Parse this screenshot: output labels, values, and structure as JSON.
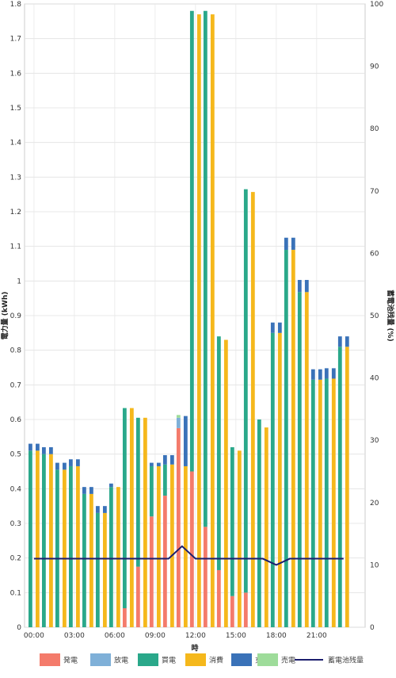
{
  "chart_data": {
    "type": "bar",
    "stacked": true,
    "title": "",
    "xlabel": "時",
    "ylabel": "電力量 (kWh)",
    "y2label": "蓄電池残量 (%)",
    "ylim": [
      0,
      1.8
    ],
    "y2lim": [
      0,
      100
    ],
    "yticks": [
      "0",
      "0.1",
      "0.2",
      "0.3",
      "0.4",
      "0.5",
      "0.6",
      "0.7",
      "0.8",
      "0.9",
      "1",
      "1.1",
      "1.2",
      "1.3",
      "1.4",
      "1.5",
      "1.6",
      "1.7",
      "1.8"
    ],
    "y2ticks": [
      "0",
      "10",
      "20",
      "30",
      "40",
      "50",
      "60",
      "70",
      "80",
      "90",
      "100"
    ],
    "xticks": [
      "00:00",
      "03:00",
      "06:00",
      "09:00",
      "12:00",
      "15:00",
      "18:00",
      "21:00"
    ],
    "grid": true,
    "legend_position": "bottom",
    "bar_pairs": [
      {
        "left": {
          "発電": 0,
          "放電": 0,
          "買電": 0.51,
          "充電": 0.02,
          "売電": 0
        },
        "right": {
          "消費": 0.51,
          "充電": 0.02
        }
      },
      {
        "left": {
          "発電": 0,
          "放電": 0,
          "買電": 0.5,
          "充電": 0.02,
          "売電": 0
        },
        "right": {
          "消費": 0.5,
          "充電": 0.02
        }
      },
      {
        "left": {
          "発電": 0,
          "放電": 0,
          "買電": 0.455,
          "充電": 0.02,
          "売電": 0
        },
        "right": {
          "消費": 0.455,
          "充電": 0.02
        }
      },
      {
        "left": {
          "発電": 0,
          "放電": 0,
          "買電": 0.465,
          "充電": 0.02,
          "売電": 0
        },
        "right": {
          "消費": 0.465,
          "充電": 0.02
        }
      },
      {
        "left": {
          "発電": 0,
          "放電": 0,
          "買電": 0.385,
          "充電": 0.02,
          "売電": 0
        },
        "right": {
          "消費": 0.385,
          "充電": 0.02
        }
      },
      {
        "left": {
          "発電": 0,
          "放電": 0,
          "買電": 0.33,
          "充電": 0.02,
          "売電": 0
        },
        "right": {
          "消費": 0.33,
          "充電": 0.02
        }
      },
      {
        "left": {
          "発電": 0,
          "放電": 0,
          "買電": 0.405,
          "充電": 0.01,
          "売電": 0
        },
        "right": {
          "消費": 0.405,
          "充電": 0
        }
      },
      {
        "left": {
          "発電": 0.055,
          "放電": 0,
          "買電": 0.578,
          "充電": 0,
          "売電": 0
        },
        "right": {
          "消費": 0.633,
          "充電": 0
        }
      },
      {
        "left": {
          "発電": 0.175,
          "放電": 0,
          "買電": 0.43,
          "充電": 0,
          "売電": 0
        },
        "right": {
          "消費": 0.605,
          "充電": 0
        }
      },
      {
        "left": {
          "発電": 0.32,
          "放電": 0,
          "買電": 0.145,
          "充電": 0.01,
          "売電": 0
        },
        "right": {
          "消費": 0.465,
          "充電": 0.01
        }
      },
      {
        "left": {
          "発電": 0.38,
          "放電": 0,
          "買電": 0.09,
          "充電": 0.027,
          "売電": 0
        },
        "right": {
          "消費": 0.47,
          "充電": 0.027
        }
      },
      {
        "left": {
          "発電": 0.575,
          "放電": 0.03,
          "買電": 0,
          "充電": 0,
          "売電": 0.008
        },
        "right": {
          "消費": 0.465,
          "充電": 0.145
        }
      },
      {
        "left": {
          "発電": 0.45,
          "放電": 0,
          "買電": 1.33,
          "充電": 0,
          "売電": 0
        },
        "right": {
          "消費": 1.77,
          "充電": 0
        }
      },
      {
        "left": {
          "発電": 0.29,
          "放電": 0,
          "買電": 1.49,
          "充電": 0,
          "売電": 0
        },
        "right": {
          "消費": 1.77,
          "充電": 0
        }
      },
      {
        "left": {
          "発電": 0.165,
          "放電": 0,
          "買電": 0.675,
          "充電": 0,
          "売電": 0
        },
        "right": {
          "消費": 0.83,
          "充電": 0
        }
      },
      {
        "left": {
          "発電": 0.09,
          "放電": 0,
          "買電": 0.43,
          "充電": 0,
          "売電": 0
        },
        "right": {
          "消費": 0.51,
          "充電": 0
        }
      },
      {
        "left": {
          "発電": 0.1,
          "放電": 0,
          "買電": 1.165,
          "充電": 0,
          "売電": 0
        },
        "right": {
          "消費": 1.257,
          "充電": 0
        }
      },
      {
        "left": {
          "発電": 0,
          "放電": 0,
          "買電": 0.6,
          "充電": 0,
          "売電": 0
        },
        "right": {
          "消費": 0.577,
          "充電": 0
        }
      },
      {
        "left": {
          "発電": 0,
          "放電": 0,
          "買電": 0.85,
          "充電": 0.03,
          "売電": 0
        },
        "right": {
          "消費": 0.85,
          "充電": 0.03
        }
      },
      {
        "left": {
          "発電": 0,
          "放電": 0,
          "買電": 1.09,
          "充電": 0.035,
          "売電": 0
        },
        "right": {
          "消費": 1.09,
          "充電": 0.035
        }
      },
      {
        "left": {
          "発電": 0,
          "放電": 0,
          "買電": 0.968,
          "充電": 0.035,
          "売電": 0
        },
        "right": {
          "消費": 0.968,
          "充電": 0.035
        }
      },
      {
        "left": {
          "発電": 0,
          "放電": 0,
          "買電": 0.715,
          "充電": 0.03,
          "売電": 0
        },
        "right": {
          "消費": 0.715,
          "充電": 0.03
        }
      },
      {
        "left": {
          "発電": 0,
          "放電": 0,
          "買電": 0.718,
          "充電": 0.03,
          "売電": 0
        },
        "right": {
          "消費": 0.718,
          "充電": 0.03
        }
      },
      {
        "left": {
          "発電": 0,
          "放電": 0,
          "買電": 0.81,
          "充電": 0.03,
          "売電": 0
        },
        "right": {
          "消費": 0.81,
          "充電": 0.03
        }
      }
    ],
    "battery_series": {
      "name": "蓄電池残量",
      "values": [
        11,
        11,
        11,
        11,
        11,
        11,
        11,
        11,
        11,
        11,
        11,
        13,
        11,
        11,
        11,
        11,
        11,
        11,
        10,
        11,
        11,
        11,
        11,
        11
      ]
    },
    "legend": [
      {
        "name": "発電",
        "color": "#f47b6b",
        "kind": "box"
      },
      {
        "name": "放電",
        "color": "#7fb0d8",
        "kind": "box"
      },
      {
        "name": "買電",
        "color": "#2aa88a",
        "kind": "box"
      },
      {
        "name": "消費",
        "color": "#f5b81c",
        "kind": "box"
      },
      {
        "name": "充電",
        "color": "#3a72b8",
        "kind": "box"
      },
      {
        "name": "売電",
        "color": "#9edc9a",
        "kind": "box"
      },
      {
        "name": "蓄電池残量",
        "color": "#1c1e6e",
        "kind": "line"
      }
    ]
  }
}
